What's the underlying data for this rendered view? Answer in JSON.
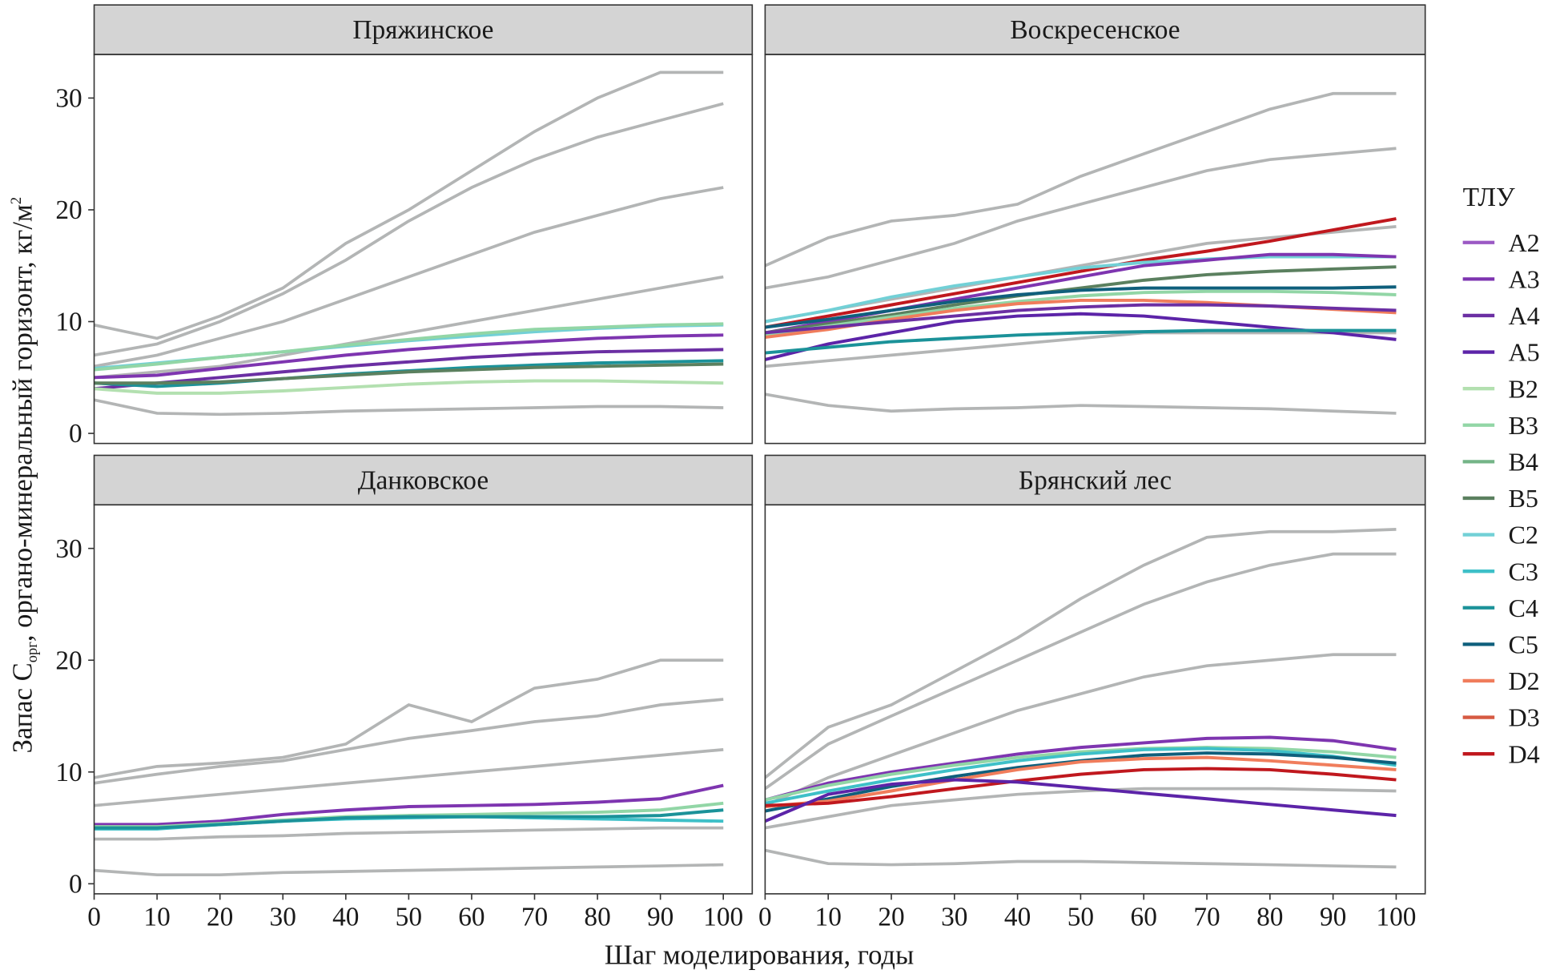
{
  "chart_data": {
    "type": "line",
    "x": [
      0,
      10,
      20,
      30,
      40,
      50,
      60,
      70,
      80,
      90,
      100
    ],
    "xlim": [
      0,
      104.6
    ],
    "ylim": [
      -0.9,
      33.9
    ],
    "xticks": [
      0,
      10,
      20,
      30,
      40,
      50,
      60,
      70,
      80,
      90,
      100
    ],
    "yticks": [
      0,
      10,
      20,
      30
    ],
    "x_label": "Шаг моделирования, годы",
    "y_label": [
      "Запас C",
      "орг",
      ", органо-минеральный горизонт, кг/м",
      "2"
    ],
    "background_color": "#b3b5b5",
    "legend_title": "ТЛУ",
    "legend": [
      {
        "name": "A2",
        "color": "#9b59c4"
      },
      {
        "name": "A3",
        "color": "#7e35b0"
      },
      {
        "name": "A4",
        "color": "#6b2fa3"
      },
      {
        "name": "A5",
        "color": "#5c24a8"
      },
      {
        "name": "B2",
        "color": "#b3e0b0"
      },
      {
        "name": "B3",
        "color": "#92d6a6"
      },
      {
        "name": "B4",
        "color": "#74b487"
      },
      {
        "name": "B5",
        "color": "#5b805f"
      },
      {
        "name": "C2",
        "color": "#72d0d6"
      },
      {
        "name": "C3",
        "color": "#3ec0c8"
      },
      {
        "name": "C4",
        "color": "#1b9299"
      },
      {
        "name": "C5",
        "color": "#0f5f7c"
      },
      {
        "name": "D2",
        "color": "#f07d5c"
      },
      {
        "name": "D3",
        "color": "#d65a42"
      },
      {
        "name": "D4",
        "color": "#c0181e"
      }
    ],
    "facets": [
      {
        "title": "Пряжинское",
        "background": [
          [
            9.7,
            8.5,
            10.5,
            13,
            17,
            20,
            23.5,
            27,
            30,
            32.3,
            32.3
          ],
          [
            7,
            8,
            10,
            12.5,
            15.5,
            19,
            22,
            24.5,
            26.5,
            28,
            29.5
          ],
          [
            6,
            7,
            8.5,
            10,
            12,
            14,
            16,
            18,
            19.5,
            21,
            22
          ],
          [
            5,
            5.5,
            6,
            7,
            8,
            9,
            10,
            11,
            12,
            13,
            14
          ],
          [
            3,
            1.8,
            1.7,
            1.8,
            2,
            2.1,
            2.2,
            2.3,
            2.4,
            2.4,
            2.3
          ]
        ],
        "series": [
          {
            "name": "C2",
            "color": "#72d0d6",
            "values": [
              5.8,
              6.3,
              6.8,
              7.3,
              7.8,
              8.3,
              8.7,
              9.1,
              9.4,
              9.6,
              9.7
            ]
          },
          {
            "name": "B3",
            "color": "#92d6a6",
            "values": [
              5.7,
              6.2,
              6.8,
              7.3,
              7.9,
              8.4,
              8.9,
              9.3,
              9.5,
              9.7,
              9.8
            ]
          },
          {
            "name": "A3",
            "color": "#7e35b0",
            "values": [
              5,
              5.2,
              5.8,
              6.4,
              7,
              7.5,
              7.9,
              8.2,
              8.5,
              8.7,
              8.8
            ]
          },
          {
            "name": "A4",
            "color": "#6b2fa3",
            "values": [
              4,
              4.5,
              5,
              5.5,
              6,
              6.4,
              6.8,
              7.1,
              7.3,
              7.4,
              7.5
            ]
          },
          {
            "name": "C4",
            "color": "#1b9299",
            "values": [
              4.5,
              4.2,
              4.5,
              4.9,
              5.3,
              5.6,
              5.9,
              6.1,
              6.3,
              6.4,
              6.5
            ]
          },
          {
            "name": "B5",
            "color": "#5b805f",
            "values": [
              4.5,
              4.5,
              4.6,
              4.9,
              5.2,
              5.5,
              5.7,
              5.9,
              6,
              6.1,
              6.2
            ]
          },
          {
            "name": "B2",
            "color": "#b3e0b0",
            "values": [
              4,
              3.6,
              3.6,
              3.8,
              4.1,
              4.4,
              4.6,
              4.7,
              4.7,
              4.6,
              4.5
            ]
          }
        ]
      },
      {
        "title": "Воскресенское",
        "background": [
          [
            15,
            17.5,
            19,
            19.5,
            20.5,
            23,
            25,
            27,
            29,
            30.4,
            30.4
          ],
          [
            13,
            14,
            15.5,
            17,
            19,
            20.5,
            22,
            23.5,
            24.5,
            25,
            25.5
          ],
          [
            10,
            11,
            12,
            13,
            14,
            15,
            16,
            17,
            17.5,
            18,
            18.5
          ],
          [
            6,
            6.5,
            7,
            7.5,
            8,
            8.5,
            9,
            9,
            9,
            9,
            9
          ],
          [
            3.5,
            2.5,
            2,
            2.2,
            2.3,
            2.5,
            2.4,
            2.3,
            2.2,
            2,
            1.8
          ]
        ],
        "series": [
          {
            "name": "D4",
            "color": "#c0181e",
            "values": [
              9.5,
              10.5,
              11.5,
              12.5,
              13.5,
              14.5,
              15.5,
              16.3,
              17.2,
              18.2,
              19.2
            ]
          },
          {
            "name": "C2",
            "color": "#72d0d6",
            "values": [
              10,
              11,
              12.2,
              13.2,
              14,
              14.8,
              15.3,
              15.6,
              15.8,
              15.8,
              15.8
            ]
          },
          {
            "name": "A3",
            "color": "#7e35b0",
            "values": [
              9,
              10,
              11,
              12,
              13,
              14,
              15,
              15.5,
              16,
              16,
              15.8
            ]
          },
          {
            "name": "B5",
            "color": "#5b805f",
            "values": [
              9,
              9.8,
              10.6,
              11.5,
              12.3,
              13,
              13.7,
              14.2,
              14.5,
              14.7,
              14.9
            ]
          },
          {
            "name": "C5",
            "color": "#0f5f7c",
            "values": [
              9.5,
              10.2,
              11,
              11.8,
              12.4,
              12.8,
              13,
              13,
              13,
              13,
              13.1
            ]
          },
          {
            "name": "B3",
            "color": "#92d6a6",
            "values": [
              8.8,
              9.6,
              10.4,
              11.2,
              11.8,
              12.3,
              12.6,
              12.7,
              12.7,
              12.6,
              12.4
            ]
          },
          {
            "name": "D2",
            "color": "#f07d5c",
            "values": [
              8.6,
              9.3,
              10.2,
              11,
              11.6,
              11.9,
              11.9,
              11.7,
              11.4,
              11.1,
              10.8
            ]
          },
          {
            "name": "A4",
            "color": "#6b2fa3",
            "values": [
              9,
              9.5,
              10,
              10.5,
              11,
              11.3,
              11.5,
              11.5,
              11.4,
              11.2,
              11
            ]
          },
          {
            "name": "A5",
            "color": "#5c24a8",
            "values": [
              6.6,
              8,
              9,
              10,
              10.5,
              10.7,
              10.5,
              10,
              9.5,
              9,
              8.4
            ]
          },
          {
            "name": "C4",
            "color": "#1b9299",
            "values": [
              7.2,
              7.7,
              8.2,
              8.5,
              8.8,
              9,
              9.1,
              9.2,
              9.2,
              9.2,
              9.2
            ]
          }
        ]
      },
      {
        "title": "Данковское",
        "background": [
          [
            9.5,
            10.5,
            10.8,
            11.3,
            12.5,
            16,
            14.5,
            17.5,
            18.3,
            20,
            20
          ],
          [
            9,
            9.8,
            10.5,
            11,
            12,
            13,
            13.7,
            14.5,
            15,
            16,
            16.5
          ],
          [
            7,
            7.5,
            8,
            8.5,
            9,
            9.5,
            10,
            10.5,
            11,
            11.5,
            12
          ],
          [
            4,
            4,
            4.2,
            4.3,
            4.5,
            4.6,
            4.7,
            4.8,
            4.9,
            5,
            5
          ],
          [
            1.2,
            0.8,
            0.8,
            1,
            1.1,
            1.2,
            1.3,
            1.4,
            1.5,
            1.6,
            1.7
          ]
        ],
        "series": [
          {
            "name": "A3",
            "color": "#7e35b0",
            "values": [
              5.3,
              5.3,
              5.6,
              6.2,
              6.6,
              6.9,
              7,
              7.1,
              7.3,
              7.6,
              8.8
            ]
          },
          {
            "name": "B3",
            "color": "#92d6a6",
            "values": [
              5.1,
              5.1,
              5.4,
              5.7,
              6,
              6.1,
              6.2,
              6.3,
              6.4,
              6.6,
              7.2
            ]
          },
          {
            "name": "C3",
            "color": "#3ec0c8",
            "values": [
              4.9,
              4.9,
              5.3,
              5.6,
              5.8,
              5.9,
              6,
              5.9,
              5.8,
              5.7,
              5.6
            ]
          },
          {
            "name": "C4",
            "color": "#1b9299",
            "values": [
              5,
              5,
              5.3,
              5.6,
              5.9,
              6,
              6,
              6,
              6,
              6.1,
              6.6
            ]
          }
        ]
      },
      {
        "title": "Брянский лес",
        "background": [
          [
            9.5,
            14,
            16,
            19,
            22,
            25.5,
            28.5,
            31,
            31.5,
            31.5,
            31.7
          ],
          [
            8.5,
            12.5,
            15,
            17.5,
            20,
            22.5,
            25,
            27,
            28.5,
            29.5,
            29.5
          ],
          [
            7,
            9.5,
            11.5,
            13.5,
            15.5,
            17,
            18.5,
            19.5,
            20,
            20.5,
            20.5
          ],
          [
            5,
            6,
            7,
            7.5,
            8,
            8.3,
            8.5,
            8.5,
            8.5,
            8.4,
            8.3
          ],
          [
            3,
            1.8,
            1.7,
            1.8,
            2,
            2,
            1.9,
            1.8,
            1.7,
            1.6,
            1.5
          ]
        ],
        "series": [
          {
            "name": "A3",
            "color": "#7e35b0",
            "values": [
              7.5,
              9,
              10,
              10.8,
              11.6,
              12.2,
              12.6,
              13,
              13.1,
              12.8,
              12
            ]
          },
          {
            "name": "B3",
            "color": "#92d6a6",
            "values": [
              7.5,
              8.8,
              9.8,
              10.6,
              11.3,
              11.8,
              12.1,
              12.2,
              12.1,
              11.8,
              11.3
            ]
          },
          {
            "name": "C3",
            "color": "#3ec0c8",
            "values": [
              7.2,
              8.3,
              9.3,
              10.2,
              11,
              11.6,
              12,
              12.1,
              11.9,
              11.4,
              10.6
            ]
          },
          {
            "name": "C5",
            "color": "#0f5f7c",
            "values": [
              6.5,
              7.6,
              8.7,
              9.6,
              10.4,
              11,
              11.5,
              11.7,
              11.6,
              11.3,
              10.8
            ]
          },
          {
            "name": "D2",
            "color": "#f07d5c",
            "values": [
              6.9,
              7.4,
              8.3,
              9.3,
              10.2,
              10.9,
              11.2,
              11.3,
              11,
              10.6,
              10.2
            ]
          },
          {
            "name": "D4",
            "color": "#c0181e",
            "values": [
              7,
              7.2,
              7.8,
              8.5,
              9.2,
              9.8,
              10.2,
              10.3,
              10.2,
              9.8,
              9.3
            ]
          },
          {
            "name": "A5",
            "color": "#5c24a8",
            "values": [
              5.6,
              8,
              8.9,
              9.3,
              9.1,
              8.6,
              8.1,
              7.6,
              7.1,
              6.6,
              6.1
            ]
          }
        ]
      }
    ]
  }
}
